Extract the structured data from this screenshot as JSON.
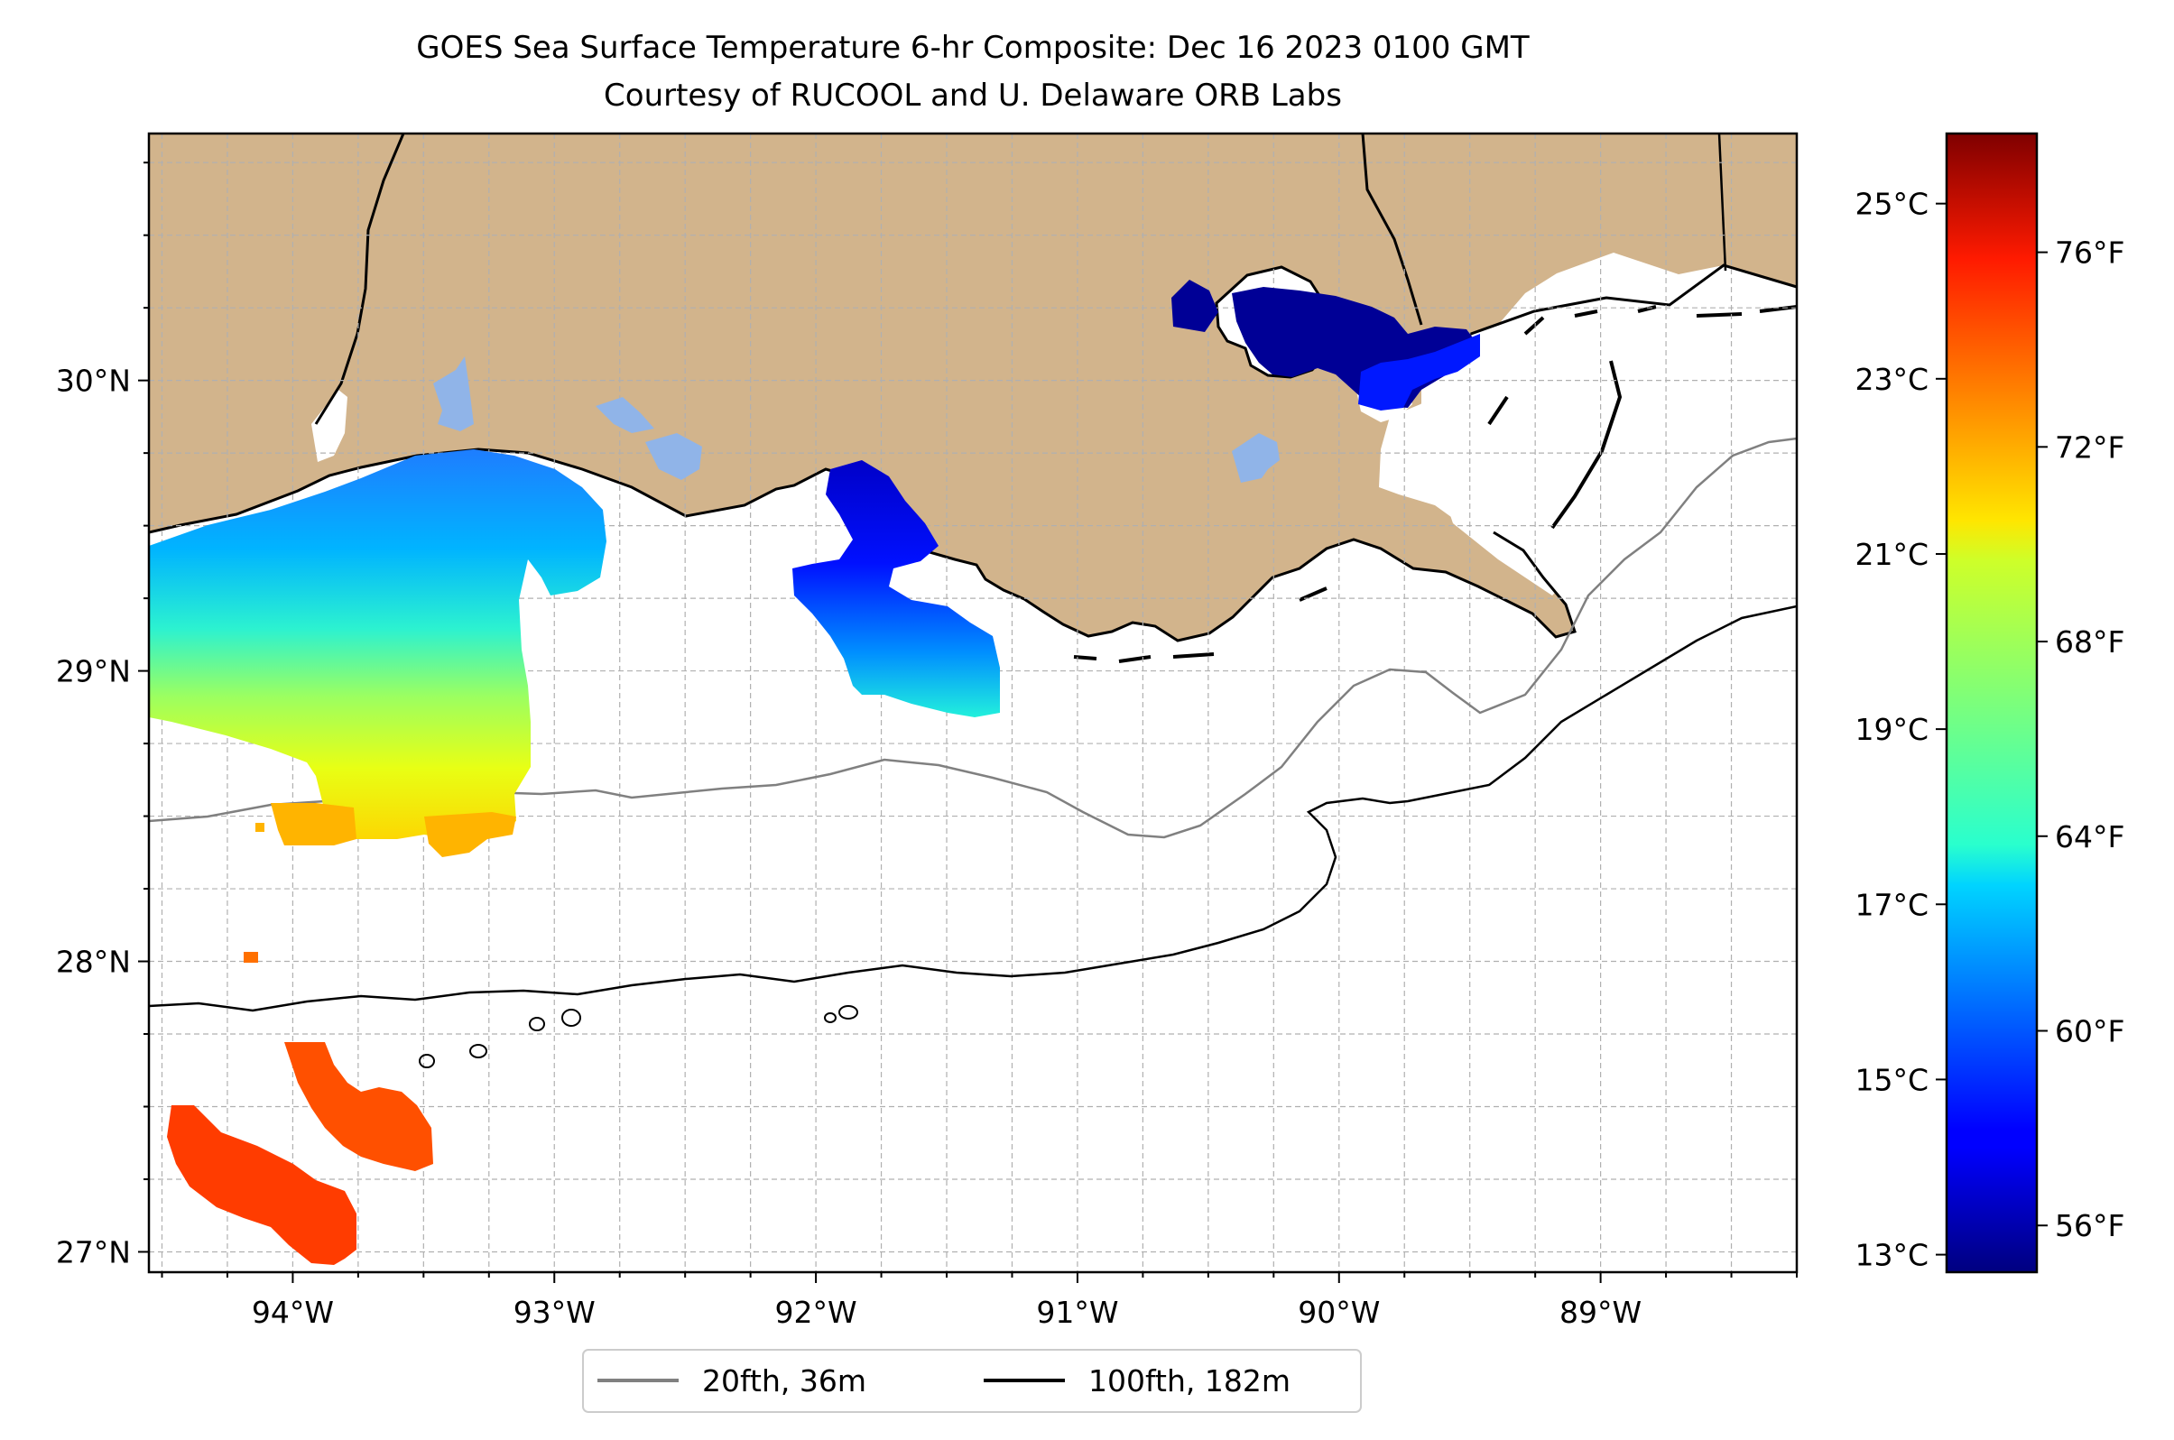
{
  "title": {
    "line1": "GOES Sea Surface Temperature 6-hr Composite: Dec 16 2023 0100 GMT",
    "line2": "Courtesy of RUCOOL and U. Delaware ORB Labs"
  },
  "map": {
    "projection": "PlateCarree",
    "lon_range": [
      -94.55,
      -88.25
    ],
    "lat_range": [
      26.93,
      30.85
    ],
    "lon_ticks": [
      {
        "value": -94,
        "label": "94°W"
      },
      {
        "value": -93,
        "label": "93°W"
      },
      {
        "value": -92,
        "label": "92°W"
      },
      {
        "value": -91,
        "label": "91°W"
      },
      {
        "value": -90,
        "label": "90°W"
      },
      {
        "value": -89,
        "label": "89°W"
      }
    ],
    "lat_ticks": [
      {
        "value": 27,
        "label": "27°N"
      },
      {
        "value": 28,
        "label": "28°N"
      },
      {
        "value": 29,
        "label": "29°N"
      },
      {
        "value": 30,
        "label": "30°N"
      }
    ],
    "grid": true,
    "grid_step_deg": 0.25,
    "colors": {
      "land": "#d2b48c",
      "ocean": "#ffffff",
      "coastline": "#000000",
      "grid": "#b0b0b0",
      "isobath_20fth": "#808080",
      "isobath_100fth": "#000000"
    }
  },
  "legend": {
    "placement": "below-center",
    "items": [
      {
        "label": "20fth, 36m",
        "color": "#808080"
      },
      {
        "label": "100fth, 182m",
        "color": "#000000"
      }
    ]
  },
  "colorbar": {
    "colormap": "jet",
    "range_c": [
      12.8,
      25.8
    ],
    "celsius_ticks": [
      {
        "value": 13,
        "label": "13°C"
      },
      {
        "value": 15,
        "label": "15°C"
      },
      {
        "value": 17,
        "label": "17°C"
      },
      {
        "value": 19,
        "label": "19°C"
      },
      {
        "value": 21,
        "label": "21°C"
      },
      {
        "value": 23,
        "label": "23°C"
      },
      {
        "value": 25,
        "label": "25°C"
      }
    ],
    "fahrenheit_ticks": [
      {
        "value": 56,
        "label": "56°F"
      },
      {
        "value": 60,
        "label": "60°F"
      },
      {
        "value": 64,
        "label": "64°F"
      },
      {
        "value": 68,
        "label": "68°F"
      },
      {
        "value": 72,
        "label": "72°F"
      },
      {
        "value": 76,
        "label": "76°F"
      }
    ]
  },
  "sst_patches": [
    {
      "name": "western-shelf",
      "temp_c": 17.5,
      "temp_south_c": 20.5
    },
    {
      "name": "atchafalaya-plume",
      "temp_c": 14.5
    },
    {
      "name": "southwest-blob-a",
      "temp_c": 23.8
    },
    {
      "name": "southwest-blob-b",
      "temp_c": 23.4
    },
    {
      "name": "pontchartrain",
      "temp_c": 13.3
    },
    {
      "name": "inland-lakes",
      "temp_c": 16.0
    }
  ]
}
